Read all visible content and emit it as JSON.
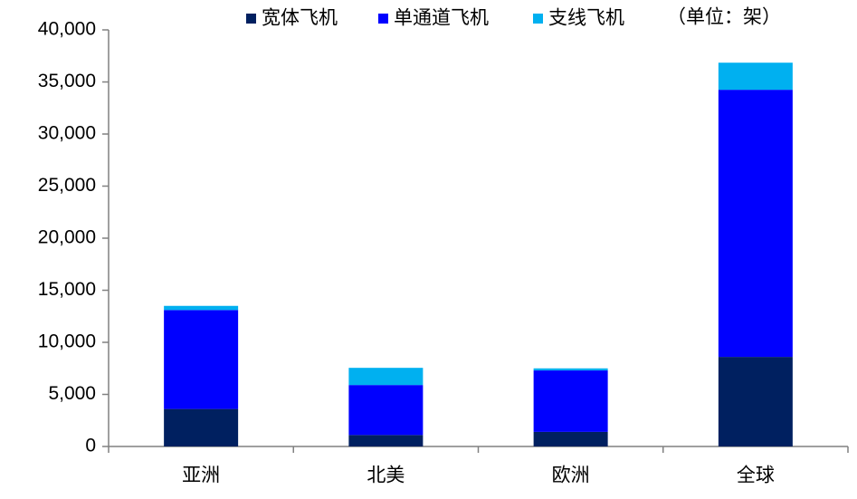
{
  "chart_data": {
    "type": "stacked_bar",
    "annotation": "（单位：架）",
    "categories": [
      "亚洲",
      "北美",
      "欧洲",
      "全球"
    ],
    "series": [
      {
        "name": "宽体飞机",
        "color": "#002060",
        "values": [
          3600,
          1100,
          1400,
          8600
        ]
      },
      {
        "name": "单通道飞机",
        "color": "#0000ff",
        "values": [
          9500,
          4800,
          5900,
          25650
        ]
      },
      {
        "name": "支线飞机",
        "color": "#00b0f0",
        "values": [
          400,
          1650,
          200,
          2600
        ]
      }
    ],
    "ylim": [
      0,
      40000
    ],
    "yticks": [
      0,
      {
        "value": 5000,
        "label": "5,000"
      },
      {
        "value": 10000,
        "label": "10,000"
      },
      {
        "value": 15000,
        "label": "15,000"
      },
      {
        "value": 20000,
        "label": "20,000"
      },
      {
        "value": 25000,
        "label": "25,000"
      },
      {
        "value": 30000,
        "label": "30,000"
      },
      {
        "value": 35000,
        "label": "35,000"
      },
      {
        "value": 40000,
        "label": "40,000"
      }
    ],
    "legend": "top"
  }
}
